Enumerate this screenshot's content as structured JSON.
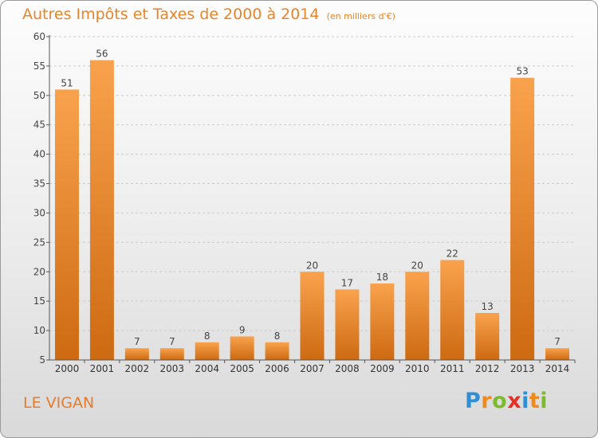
{
  "title": "Autres Impôts et Taxes de 2000 à 2014",
  "subtitle": "(en milliers d'€)",
  "commune": "LE VIGAN",
  "logo": {
    "letters": [
      "P",
      "r",
      "o",
      "x",
      "i",
      "t",
      "i"
    ],
    "colors": [
      "#2f8fd6",
      "#f08a1c",
      "#7cbb2a",
      "#e8302a",
      "#2f8fd6",
      "#f08a1c",
      "#7cbb2a"
    ]
  },
  "colors": {
    "bar_top": "#f9a24d",
    "bar_bottom": "#cd6a12",
    "title": "#e8842a",
    "axis": "#555555",
    "grid": "#cccccc"
  },
  "chart_data": {
    "type": "bar",
    "title": "Autres Impôts et Taxes de 2000 à 2014",
    "subtitle": "(en milliers d'€)",
    "categories": [
      "2000",
      "2001",
      "2002",
      "2003",
      "2004",
      "2005",
      "2006",
      "2007",
      "2008",
      "2009",
      "2010",
      "2011",
      "2012",
      "2013",
      "2014"
    ],
    "values": [
      51,
      56,
      7,
      7,
      8,
      9,
      8,
      20,
      17,
      18,
      20,
      22,
      13,
      53,
      7
    ],
    "ylim": [
      5,
      60
    ],
    "yticks": [
      5,
      10,
      15,
      20,
      25,
      30,
      35,
      40,
      45,
      50,
      55,
      60
    ],
    "grid": "dashed horizontal",
    "legend": "none",
    "data_labels": true
  }
}
